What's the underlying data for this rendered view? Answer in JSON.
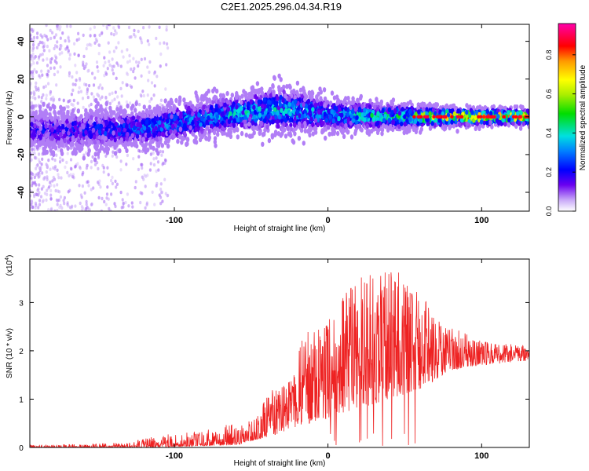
{
  "title": "C2E1.2025.296.04.34.R19",
  "chart_data": [
    {
      "type": "heatmap",
      "xlabel": "Height of straight line (km)",
      "ylabel": "Frequency (Hz)",
      "xlim": [
        -194,
        131
      ],
      "ylim": [
        -50,
        49
      ],
      "xticks": [
        -100,
        0,
        100
      ],
      "xtick_labels": [
        "-100",
        "0",
        "100"
      ],
      "yticks": [
        -40,
        -20,
        0,
        20,
        40
      ],
      "ytick_labels": [
        "-40",
        "-20",
        "0",
        "20",
        "40"
      ],
      "colorbar": {
        "label": "Normalized spectral amplitude",
        "range": [
          0,
          0.96
        ],
        "ticks": [
          0.0,
          0.2,
          0.4,
          0.6,
          0.8
        ],
        "tick_labels": [
          "0.0",
          "0.2",
          "0.4",
          "0.6",
          "0.8"
        ]
      },
      "band_center_hz": [
        [
          -194,
          -7
        ],
        [
          -150,
          -7
        ],
        [
          -120,
          -6
        ],
        [
          -100,
          -3
        ],
        [
          -60,
          2
        ],
        [
          -30,
          4
        ],
        [
          0,
          1
        ],
        [
          50,
          0
        ],
        [
          131,
          0
        ]
      ],
      "band_halfwidth_hz": [
        [
          -194,
          7
        ],
        [
          -120,
          7
        ],
        [
          -60,
          7
        ],
        [
          -30,
          9
        ],
        [
          0,
          6
        ],
        [
          60,
          4
        ],
        [
          100,
          3
        ],
        [
          131,
          3
        ]
      ],
      "peak_amplitude_by_height": [
        [
          -194,
          0.22
        ],
        [
          -130,
          0.3
        ],
        [
          -90,
          0.38
        ],
        [
          -50,
          0.42
        ],
        [
          0,
          0.4
        ],
        [
          50,
          0.55
        ],
        [
          90,
          0.85
        ],
        [
          131,
          0.9
        ]
      ]
    },
    {
      "type": "line",
      "xlabel": "Height of straight line (km)",
      "ylabel": "SNR (10 * v/v)",
      "y_multiplier": "(x10",
      "y_multiplier_exp": "4",
      "y_multiplier_close": ")",
      "xlim": [
        -194,
        131
      ],
      "ylim": [
        0,
        3.9
      ],
      "xticks": [
        -100,
        0,
        100
      ],
      "xtick_labels": [
        "-100",
        "0",
        "100"
      ],
      "yticks": [
        0,
        1,
        2,
        3
      ],
      "ytick_labels": [
        "0",
        "1",
        "2",
        "3"
      ],
      "series": [
        {
          "name": "SNR",
          "color": "#ee2222",
          "envelope": [
            [
              -194,
              0.05
            ],
            [
              -130,
              0.1
            ],
            [
              -110,
              0.25
            ],
            [
              -80,
              0.35
            ],
            [
              -50,
              0.6
            ],
            [
              -40,
              1.1
            ],
            [
              -25,
              1.5
            ],
            [
              -15,
              2.4
            ],
            [
              0,
              2.6
            ],
            [
              15,
              3.5
            ],
            [
              30,
              3.6
            ],
            [
              45,
              3.7
            ],
            [
              55,
              3.3
            ],
            [
              65,
              3.0
            ],
            [
              80,
              2.5
            ],
            [
              100,
              2.2
            ],
            [
              131,
              2.1
            ]
          ],
          "baseline": [
            [
              -194,
              0.0
            ],
            [
              -120,
              0.0
            ],
            [
              -60,
              0.05
            ],
            [
              -30,
              0.3
            ],
            [
              0,
              0.6
            ],
            [
              30,
              0.9
            ],
            [
              60,
              1.2
            ],
            [
              80,
              1.6
            ],
            [
              100,
              1.7
            ],
            [
              131,
              1.8
            ]
          ]
        }
      ]
    }
  ]
}
